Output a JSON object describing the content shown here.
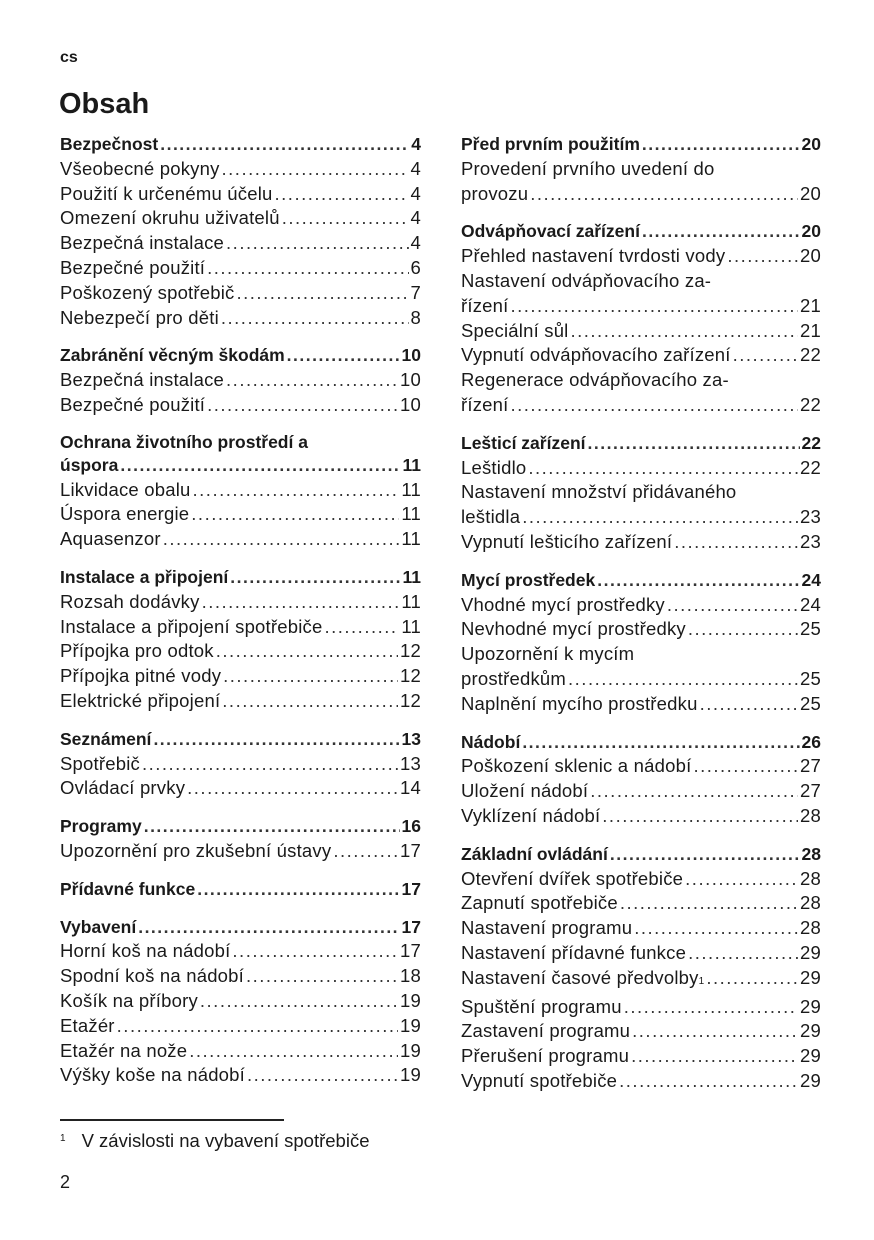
{
  "lang": "cs",
  "title": "Obsah",
  "left": [
    {
      "heading": "Bezpečnost",
      "page": "4",
      "items": [
        {
          "text": "Všeobecné pokyny",
          "page": "4"
        },
        {
          "text": "Použití k určenému účelu",
          "page": "4"
        },
        {
          "text": "Omezení okruhu uživatelů",
          "page": "4"
        },
        {
          "text": "Bezpečná instalace",
          "page": "4"
        },
        {
          "text": "Bezpečné použití",
          "page": "6"
        },
        {
          "text": "Poškozený spotřebič",
          "page": "7"
        },
        {
          "text": "Nebezpečí pro děti",
          "page": "8"
        }
      ]
    },
    {
      "heading": "Zabránění věcným škodám",
      "page": "10",
      "items": [
        {
          "text": "Bezpečná instalace",
          "page": "10"
        },
        {
          "text": "Bezpečné použití",
          "page": "10"
        }
      ]
    },
    {
      "heading_first": "Ochrana životního prostředí a",
      "heading": "úspora",
      "page": "11",
      "items": [
        {
          "text": "Likvidace obalu",
          "page": "11"
        },
        {
          "text": "Úspora energie",
          "page": "11"
        },
        {
          "text": "Aquasenzor",
          "page": "11"
        }
      ]
    },
    {
      "heading": "Instalace a připojení",
      "page": "11",
      "items": [
        {
          "text": "Rozsah dodávky",
          "page": "11"
        },
        {
          "text": "Instalace a připojení spotřebiče",
          "page": "11"
        },
        {
          "text": "Přípojka pro odtok",
          "page": "12"
        },
        {
          "text": "Přípojka pitné vody",
          "page": "12"
        },
        {
          "text": "Elektrické připojení",
          "page": "12"
        }
      ]
    },
    {
      "heading": "Seznámení",
      "page": "13",
      "items": [
        {
          "text": "Spotřebič",
          "page": "13"
        },
        {
          "text": "Ovládací prvky",
          "page": "14"
        }
      ]
    },
    {
      "heading": "Programy",
      "page": "16",
      "items": [
        {
          "text": "Upozornění pro zkušební ústavy",
          "page": "17"
        }
      ]
    },
    {
      "heading": "Přídavné funkce",
      "page": "17",
      "items": []
    },
    {
      "heading": "Vybavení",
      "page": "17",
      "items": [
        {
          "text": "Horní koš na nádobí",
          "page": "17"
        },
        {
          "text": "Spodní koš na nádobí",
          "page": "18"
        },
        {
          "text": "Košík na příbory",
          "page": "19"
        },
        {
          "text": "Etažér",
          "page": "19"
        },
        {
          "text": "Etažér na nože",
          "page": "19"
        },
        {
          "text": "Výšky koše na nádobí",
          "page": "19"
        }
      ]
    }
  ],
  "right": [
    {
      "heading": "Před prvním použitím",
      "page": "20",
      "items": [
        {
          "first": "Provedení prvního uvedení do",
          "text": "provozu",
          "page": "20"
        }
      ]
    },
    {
      "heading": "Odvápňovací zařízení",
      "page": "20",
      "items": [
        {
          "text": "Přehled nastavení tvrdosti vody",
          "page": "20"
        },
        {
          "first": "Nastavení odvápňovacího za-",
          "text": "řízení",
          "page": "21"
        },
        {
          "text": "Speciální sůl",
          "page": "21"
        },
        {
          "text": "Vypnutí odvápňovacího zařízení",
          "page": "22"
        },
        {
          "first": "Regenerace odvápňovacího za-",
          "text": "řízení",
          "page": "22"
        }
      ]
    },
    {
      "heading": "Lešticí zařízení",
      "page": "22",
      "items": [
        {
          "text": "Leštidlo",
          "page": "22"
        },
        {
          "first": "Nastavení množství přidávaného",
          "text": "leštidla",
          "page": "23"
        },
        {
          "text": "Vypnutí lešticího zařízení",
          "page": "23"
        }
      ]
    },
    {
      "heading": "Mycí prostředek",
      "page": "24",
      "items": [
        {
          "text": "Vhodné mycí prostředky",
          "page": "24"
        },
        {
          "text": "Nevhodné mycí prostředky",
          "page": "25"
        },
        {
          "first": "Upozornění k mycím",
          "text": "prostředkům",
          "page": "25"
        },
        {
          "text": "Naplnění mycího prostředku",
          "page": "25"
        }
      ]
    },
    {
      "heading": "Nádobí",
      "page": "26",
      "items": [
        {
          "text": "Poškození sklenic a nádobí",
          "page": "27"
        },
        {
          "text": "Uložení nádobí",
          "page": "27"
        },
        {
          "text": "Vyklízení nádobí",
          "page": "28"
        }
      ]
    },
    {
      "heading": "Základní ovládání",
      "page": "28",
      "items": [
        {
          "text": "Otevření dvířek spotřebiče",
          "page": "28"
        },
        {
          "text": "Zapnutí spotřebiče",
          "page": "28"
        },
        {
          "text": "Nastavení programu",
          "page": "28"
        },
        {
          "text": "Nastavení přídavné funkce",
          "page": "29"
        },
        {
          "text": "Nastavení časové předvolby",
          "sup": "1",
          "page": "29"
        },
        {
          "text": "Spuštění programu",
          "page": "29"
        },
        {
          "text": "Zastavení programu",
          "page": "29"
        },
        {
          "text": "Přerušení programu",
          "page": "29"
        },
        {
          "text": "Vypnutí spotřebiče",
          "page": "29"
        }
      ]
    }
  ],
  "footnote": {
    "mark": "1",
    "text": "V závislosti na vybavení spotřebiče"
  },
  "page_number": "2"
}
